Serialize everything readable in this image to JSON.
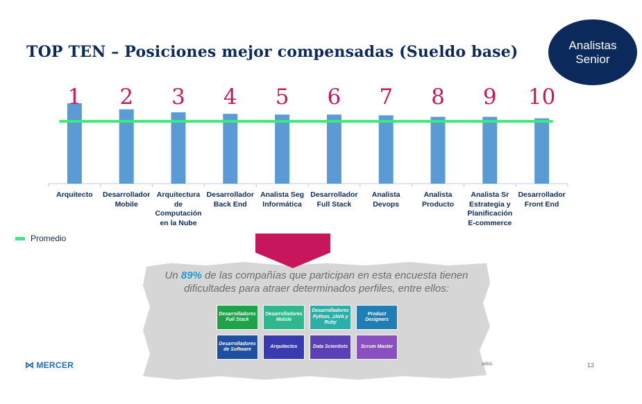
{
  "slide": {
    "title": "TOP TEN – Posiciones mejor compensadas (Sueldo base)",
    "badge_line1": "Analistas",
    "badge_line2": "Senior",
    "page_number": "13",
    "footnote": "ados.",
    "logo_text": "MERCER"
  },
  "chart_data": {
    "type": "bar",
    "categories": [
      "Arquitecto",
      "Desarrollador Mobile",
      "Arquitectura de Computación en la Nube",
      "Desarrollador Back End",
      "Analista Seg Informática",
      "Desarrollador Full Stack",
      "Analista Devops",
      "Analista Producto",
      "Analista Sr Estrategia y Planificación E-commerce",
      "Desarrollador Front End"
    ],
    "category_lines": [
      [
        "Arquitecto"
      ],
      [
        "Desarrollador",
        "Mobile"
      ],
      [
        "Arquitectura",
        "de",
        "Computación",
        "en la Nube"
      ],
      [
        "Desarrollador",
        "Back End"
      ],
      [
        "Analista Seg",
        "Informática"
      ],
      [
        "Desarrollador",
        "Full Stack"
      ],
      [
        "Analista",
        "Devops"
      ],
      [
        "Analista",
        "Producto"
      ],
      [
        "Analista Sr",
        "Estrategia y",
        "Planificación",
        "E-commerce"
      ],
      [
        "Desarrollador",
        "Front End"
      ]
    ],
    "ranks": [
      "1",
      "2",
      "3",
      "4",
      "5",
      "6",
      "7",
      "8",
      "9",
      "10"
    ],
    "values": [
      107,
      99,
      95,
      93,
      92,
      92,
      91,
      89,
      89,
      87
    ],
    "average": 83,
    "ylim": [
      0,
      120
    ],
    "legend": [
      {
        "name": "Promedio",
        "color": "#3bea7a"
      }
    ],
    "legend_position": "bottom-left",
    "bar_color": "#5b9bd5",
    "average_color": "#3bea7a",
    "rank_color": "#c8165d"
  },
  "callout": {
    "text_before": "Un ",
    "percent": "89%",
    "text_after": " de las compañías que participan en esta encuesta tienen dificultades para atraer determinados perfiles, entre ellos:",
    "tiles": [
      {
        "label": "Desarrolladores Full Stack",
        "color": "#1fa34a"
      },
      {
        "label": "Desarrolladores Mobile",
        "color": "#2fb88e"
      },
      {
        "label": "Desarrolladores Python, JAVA y Ruby",
        "color": "#2ab0a8"
      },
      {
        "label": "Product Designers",
        "color": "#1f7fb5"
      },
      {
        "label": "Desarrolladores de Software",
        "color": "#1f4fa0"
      },
      {
        "label": "Arquitectos",
        "color": "#3a3ab0"
      },
      {
        "label": "Data Scientists",
        "color": "#5a3fb5"
      },
      {
        "label": "Scrum Master",
        "color": "#8a4fc0"
      }
    ]
  }
}
